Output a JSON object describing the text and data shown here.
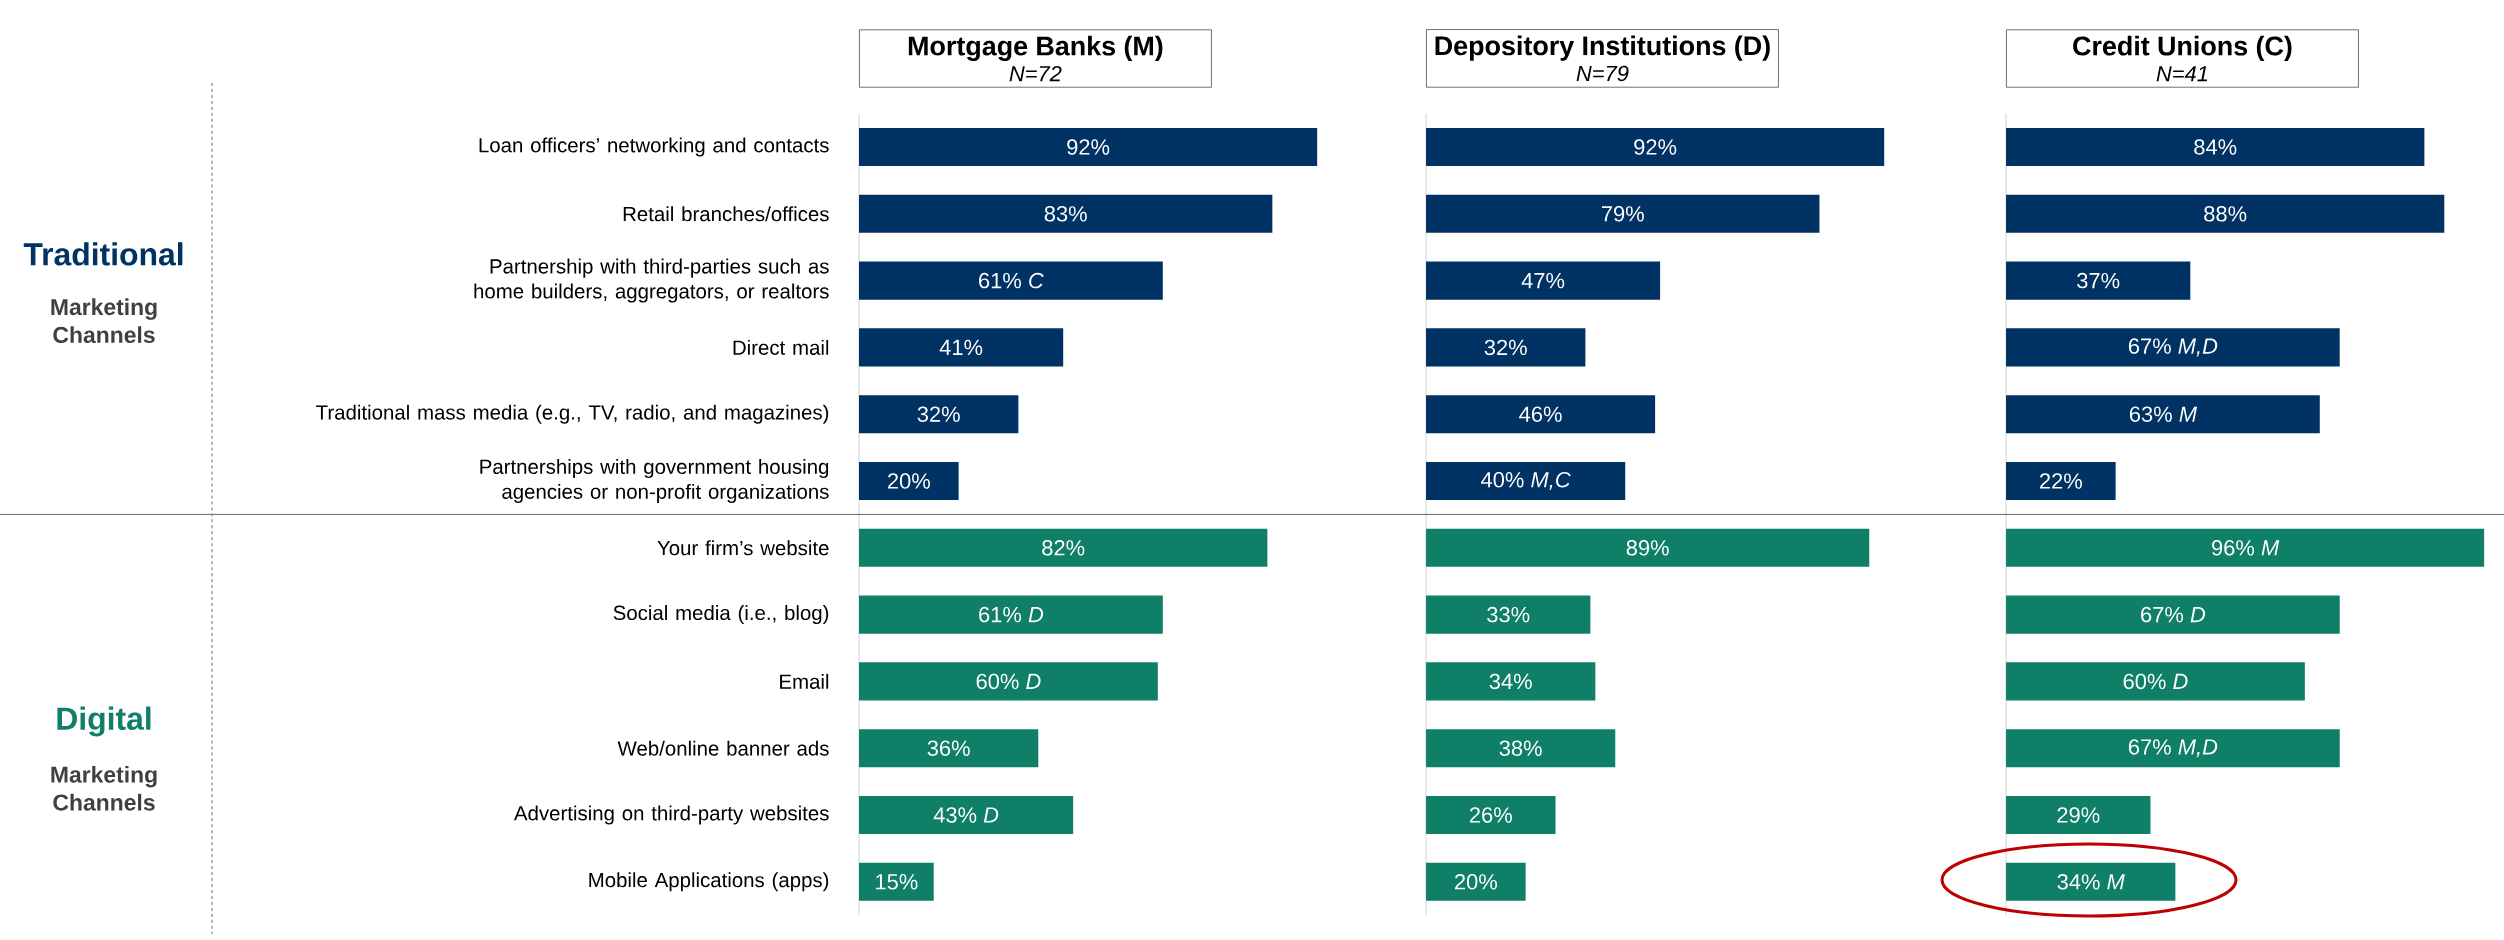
{
  "chart_data": [
    {
      "type": "bar",
      "orientation": "horizontal",
      "title": "Mortgage Banks (M)",
      "subtitle": "N=72",
      "categories": [
        "Loan officers’ networking and contacts",
        "Retail branches/offices",
        "Partnership with third-parties such as home builders, aggregators, or realtors",
        "Direct mail",
        "Traditional mass media (e.g., TV, radio, and magazines)",
        "Partnerships with government housing agencies or non-profit organizations",
        "Your firm’s website",
        "Social media (i.e., blog)",
        "Email",
        "Web/online banner ads",
        "Advertising on third-party websites",
        "Mobile Applications (apps)"
      ],
      "values": [
        92,
        83,
        61,
        41,
        32,
        20,
        82,
        61,
        60,
        36,
        43,
        15
      ],
      "value_labels": [
        "92%",
        "83%",
        "61% *C*",
        "41%",
        "32%",
        "20%",
        "82%",
        "61% *D*",
        "60% *D*",
        "36%",
        "43% *D*",
        "15%"
      ],
      "colors": [
        "#003263",
        "#003263",
        "#003263",
        "#003263",
        "#003263",
        "#003263",
        "#0f7f67",
        "#0f7f67",
        "#0f7f67",
        "#0f7f67",
        "#0f7f67",
        "#0f7f67"
      ],
      "tick_labels": "y",
      "annotations": [
        "Traditional",
        "Marketing Channels",
        "Digital",
        "Marketing Channels"
      ]
    },
    {
      "type": "bar",
      "orientation": "horizontal",
      "title": "Depository Institutions (D)",
      "subtitle": "N=79",
      "categories": [
        null,
        null,
        null,
        null,
        null,
        null,
        null,
        null,
        null,
        null,
        null,
        null
      ],
      "values": [
        92,
        79,
        47,
        32,
        46,
        40,
        89,
        33,
        34,
        38,
        26,
        20
      ],
      "value_labels": [
        "92%",
        "79%",
        "47%",
        "32%",
        "46%",
        "40% *M,C*",
        "89%",
        "33%",
        "34%",
        "38%",
        "26%",
        "20%"
      ],
      "colors": [
        "#003263",
        "#003263",
        "#003263",
        "#003263",
        "#003263",
        "#003263",
        "#0f7f67",
        "#0f7f67",
        "#0f7f67",
        "#0f7f67",
        "#0f7f67",
        "#0f7f67"
      ],
      "tick_labels": false
    },
    {
      "type": "bar",
      "orientation": "horizontal",
      "title": "Credit Unions (C)",
      "subtitle": "N=41",
      "categories": [
        null,
        null,
        null,
        null,
        null,
        null,
        null,
        null,
        null,
        null,
        null,
        null
      ],
      "values": [
        84,
        88,
        37,
        67,
        63,
        22,
        96,
        67,
        60,
        67,
        29,
        34
      ],
      "value_labels": [
        "84%",
        "88%",
        "37%",
        "67%  *M,D*",
        "63% *M*",
        "22%",
        "96% *M*",
        "67% *D*",
        "60% *D*",
        "67%  *M,D*",
        "29%",
        "34% *M*"
      ],
      "colors": [
        "#003263",
        "#003263",
        "#003263",
        "#003263",
        "#003263",
        "#003263",
        "#0f7f67",
        "#0f7f67",
        "#0f7f67",
        "#0f7f67",
        "#0f7f67",
        "#0f7f67"
      ],
      "tick_labels": false
    }
  ]
}
